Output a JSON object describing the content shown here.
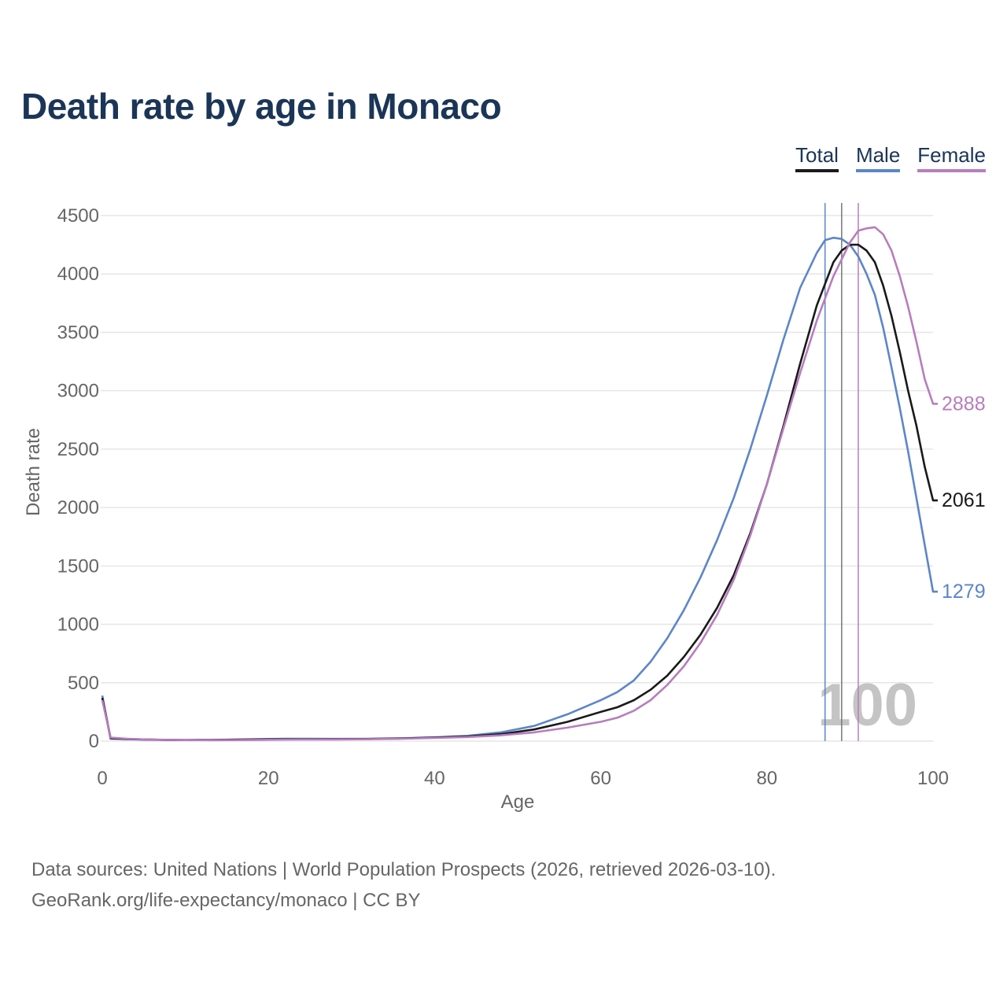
{
  "title": "Death rate by age in Monaco",
  "legend": {
    "total": "Total",
    "male": "Male",
    "female": "Female"
  },
  "colors": {
    "total": "#1a1a1a",
    "male": "#5c86c8",
    "female": "#b77dbd",
    "title": "#1b3557",
    "grid": "#e6e6e6",
    "axis_text": "#666666"
  },
  "footer": {
    "sources": "Data sources: United Nations | World Population Prospects (2026, retrieved 2026-03-10).",
    "link": "GeoRank.org/life-expectancy/monaco | CC BY"
  },
  "chart_data": {
    "type": "line",
    "title": "Death rate by age in Monaco",
    "xlabel": "Age",
    "ylabel": "Death rate",
    "xlim": [
      0,
      100
    ],
    "ylim": [
      0,
      4500
    ],
    "x_ticks": [
      0,
      20,
      40,
      60,
      80,
      100
    ],
    "y_ticks": [
      0,
      500,
      1000,
      1500,
      2000,
      2500,
      3000,
      3500,
      4000,
      4500
    ],
    "grid": true,
    "legend_position": "top-right",
    "annotation": "100",
    "vertical_markers": [
      {
        "series": "Male",
        "x": 87
      },
      {
        "series": "Total",
        "x": 89
      },
      {
        "series": "Female",
        "x": 91
      }
    ],
    "end_labels": {
      "Total": "2061",
      "Male": "1279",
      "Female": "2888"
    },
    "series": [
      {
        "name": "Total",
        "points": [
          [
            0,
            370
          ],
          [
            1,
            25
          ],
          [
            3,
            18
          ],
          [
            5,
            14
          ],
          [
            8,
            10
          ],
          [
            10,
            9
          ],
          [
            13,
            10
          ],
          [
            16,
            12
          ],
          [
            19,
            15
          ],
          [
            22,
            17
          ],
          [
            25,
            17
          ],
          [
            28,
            16
          ],
          [
            32,
            18
          ],
          [
            36,
            22
          ],
          [
            40,
            30
          ],
          [
            44,
            40
          ],
          [
            48,
            60
          ],
          [
            52,
            100
          ],
          [
            56,
            165
          ],
          [
            60,
            250
          ],
          [
            62,
            290
          ],
          [
            64,
            350
          ],
          [
            66,
            440
          ],
          [
            68,
            560
          ],
          [
            70,
            720
          ],
          [
            72,
            910
          ],
          [
            74,
            1140
          ],
          [
            76,
            1420
          ],
          [
            78,
            1780
          ],
          [
            80,
            2200
          ],
          [
            82,
            2700
          ],
          [
            84,
            3230
          ],
          [
            86,
            3730
          ],
          [
            88,
            4100
          ],
          [
            89,
            4200
          ],
          [
            90,
            4250
          ],
          [
            91,
            4250
          ],
          [
            92,
            4200
          ],
          [
            93,
            4100
          ],
          [
            94,
            3900
          ],
          [
            95,
            3640
          ],
          [
            96,
            3330
          ],
          [
            97,
            3000
          ],
          [
            98,
            2700
          ],
          [
            99,
            2350
          ],
          [
            100,
            2061
          ]
        ]
      },
      {
        "name": "Male",
        "points": [
          [
            0,
            390
          ],
          [
            1,
            20
          ],
          [
            3,
            16
          ],
          [
            5,
            13
          ],
          [
            8,
            9
          ],
          [
            10,
            9
          ],
          [
            13,
            10
          ],
          [
            16,
            13
          ],
          [
            19,
            17
          ],
          [
            22,
            20
          ],
          [
            25,
            20
          ],
          [
            28,
            19
          ],
          [
            32,
            20
          ],
          [
            36,
            24
          ],
          [
            40,
            32
          ],
          [
            44,
            45
          ],
          [
            48,
            75
          ],
          [
            52,
            130
          ],
          [
            56,
            230
          ],
          [
            60,
            350
          ],
          [
            62,
            420
          ],
          [
            64,
            520
          ],
          [
            66,
            680
          ],
          [
            68,
            880
          ],
          [
            70,
            1120
          ],
          [
            72,
            1400
          ],
          [
            74,
            1720
          ],
          [
            76,
            2080
          ],
          [
            78,
            2500
          ],
          [
            80,
            2960
          ],
          [
            82,
            3440
          ],
          [
            84,
            3880
          ],
          [
            86,
            4180
          ],
          [
            87,
            4290
          ],
          [
            88,
            4310
          ],
          [
            89,
            4300
          ],
          [
            90,
            4250
          ],
          [
            91,
            4150
          ],
          [
            92,
            4000
          ],
          [
            93,
            3820
          ],
          [
            94,
            3540
          ],
          [
            95,
            3200
          ],
          [
            96,
            2850
          ],
          [
            97,
            2480
          ],
          [
            98,
            2080
          ],
          [
            99,
            1680
          ],
          [
            100,
            1279
          ]
        ]
      },
      {
        "name": "Female",
        "points": [
          [
            0,
            350
          ],
          [
            1,
            30
          ],
          [
            3,
            20
          ],
          [
            5,
            15
          ],
          [
            8,
            11
          ],
          [
            10,
            9
          ],
          [
            13,
            8
          ],
          [
            16,
            9
          ],
          [
            19,
            11
          ],
          [
            22,
            13
          ],
          [
            25,
            14
          ],
          [
            28,
            14
          ],
          [
            32,
            16
          ],
          [
            36,
            20
          ],
          [
            40,
            27
          ],
          [
            44,
            35
          ],
          [
            48,
            50
          ],
          [
            52,
            75
          ],
          [
            56,
            115
          ],
          [
            60,
            165
          ],
          [
            62,
            200
          ],
          [
            64,
            260
          ],
          [
            66,
            350
          ],
          [
            68,
            480
          ],
          [
            70,
            640
          ],
          [
            72,
            840
          ],
          [
            74,
            1080
          ],
          [
            76,
            1380
          ],
          [
            78,
            1760
          ],
          [
            80,
            2200
          ],
          [
            82,
            2680
          ],
          [
            84,
            3150
          ],
          [
            86,
            3600
          ],
          [
            88,
            3980
          ],
          [
            90,
            4270
          ],
          [
            91,
            4370
          ],
          [
            92,
            4390
          ],
          [
            93,
            4400
          ],
          [
            94,
            4340
          ],
          [
            95,
            4200
          ],
          [
            96,
            3980
          ],
          [
            97,
            3720
          ],
          [
            98,
            3420
          ],
          [
            99,
            3100
          ],
          [
            100,
            2888
          ]
        ]
      }
    ]
  }
}
